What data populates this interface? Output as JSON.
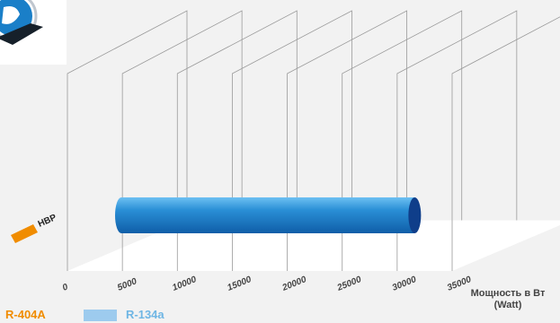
{
  "chart_data": {
    "type": "bar",
    "orientation": "horizontal",
    "style": "3d-cylinder",
    "categories": [
      "HBP"
    ],
    "series": [
      {
        "name": "R-404A",
        "color": "#f08c00",
        "values": [
          0
        ]
      },
      {
        "name": "R-134a",
        "color": "#2a8fd6",
        "values": [
          27800
        ]
      }
    ],
    "x_ticks": [
      "0",
      "5000",
      "10000",
      "15000",
      "20000",
      "25000",
      "30000",
      "35000"
    ],
    "xlim": [
      0,
      35000
    ],
    "xlabel": "Мощность в Вт\n(Watt)",
    "grid": true,
    "legend_position": "bottom-left"
  },
  "legend": {
    "a_label": "R-404A",
    "a_color": "#f08c00",
    "b_label": "R-134a",
    "b_color": "#6fb6e4",
    "b_swatch_color": "#9dcbee"
  },
  "logo": {
    "icon": "compressor-brand-logo-icon"
  }
}
